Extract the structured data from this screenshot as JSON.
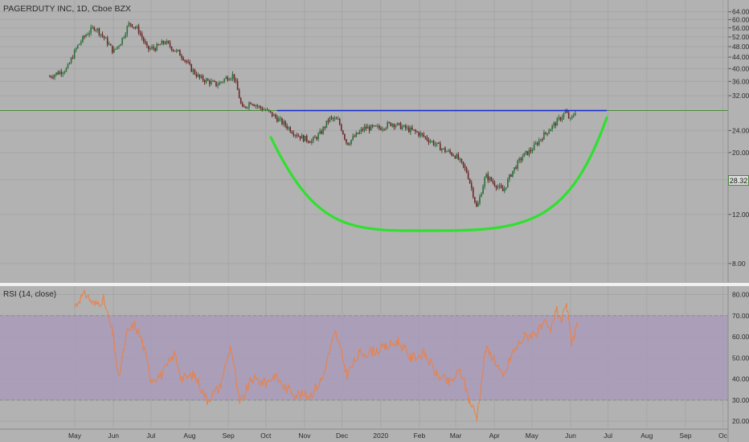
{
  "header": {
    "symbol": "PAGERDUTY INC, 1D, Cboe BZX",
    "current_price": "28.32"
  },
  "rsi": {
    "label": "RSI (14, close)"
  },
  "colors": {
    "background": "#b2b2b2",
    "up_candle": "#2f6f3a",
    "down_candle": "#6a2a2a",
    "resistance_line": "#1a2fd0",
    "cup_curve": "#2fe02f",
    "rsi_line": "#e8824a",
    "rsi_band": "#a99ab8",
    "current_price_line": "#4a8a3a"
  },
  "chart_data": [
    {
      "type": "candlestick",
      "title": "PAGERDUTY INC, 1D, Cboe BZX",
      "x_tick_labels": [
        "May",
        "Jun",
        "Jul",
        "Aug",
        "Sep",
        "Oct",
        "Nov",
        "Dec",
        "2020",
        "Feb",
        "Mar",
        "Apr",
        "May",
        "Jun",
        "Jul",
        "Aug",
        "Sep",
        "Oc"
      ],
      "y_tick_labels": [
        "64.00",
        "60.00",
        "56.00",
        "52.00",
        "48.00",
        "44.00",
        "40.00",
        "36.00",
        "32.00",
        "24.00",
        "20.00",
        "16.00",
        "12.00",
        "8.00"
      ],
      "current_price": 28.32,
      "close_series": [
        {
          "x": "2019-04-11",
          "y": 37.5
        },
        {
          "x": "2019-04-25",
          "y": 40.0
        },
        {
          "x": "2019-05-03",
          "y": 48.0
        },
        {
          "x": "2019-05-10",
          "y": 53.0
        },
        {
          "x": "2019-05-17",
          "y": 56.5
        },
        {
          "x": "2019-05-24",
          "y": 52.0
        },
        {
          "x": "2019-06-01",
          "y": 46.0
        },
        {
          "x": "2019-06-07",
          "y": 50.0
        },
        {
          "x": "2019-06-14",
          "y": 58.5
        },
        {
          "x": "2019-06-21",
          "y": 55.0
        },
        {
          "x": "2019-06-28",
          "y": 47.0
        },
        {
          "x": "2019-07-05",
          "y": 47.5
        },
        {
          "x": "2019-07-12",
          "y": 50.0
        },
        {
          "x": "2019-07-19",
          "y": 47.0
        },
        {
          "x": "2019-07-26",
          "y": 44.5
        },
        {
          "x": "2019-08-02",
          "y": 40.0
        },
        {
          "x": "2019-08-09",
          "y": 37.0
        },
        {
          "x": "2019-08-16",
          "y": 36.0
        },
        {
          "x": "2019-08-23",
          "y": 35.0
        },
        {
          "x": "2019-08-30",
          "y": 37.0
        },
        {
          "x": "2019-09-05",
          "y": 38.0
        },
        {
          "x": "2019-09-12",
          "y": 28.5
        },
        {
          "x": "2019-09-19",
          "y": 30.5
        },
        {
          "x": "2019-09-26",
          "y": 29.0
        },
        {
          "x": "2019-10-03",
          "y": 28.0
        },
        {
          "x": "2019-10-10",
          "y": 26.5
        },
        {
          "x": "2019-10-17",
          "y": 25.0
        },
        {
          "x": "2019-10-24",
          "y": 23.5
        },
        {
          "x": "2019-10-31",
          "y": 22.5
        },
        {
          "x": "2019-11-07",
          "y": 22.0
        },
        {
          "x": "2019-11-14",
          "y": 23.5
        },
        {
          "x": "2019-11-21",
          "y": 26.5
        },
        {
          "x": "2019-11-28",
          "y": 26.0
        },
        {
          "x": "2019-12-05",
          "y": 21.5
        },
        {
          "x": "2019-12-12",
          "y": 23.0
        },
        {
          "x": "2019-12-19",
          "y": 24.5
        },
        {
          "x": "2019-12-31",
          "y": 24.5
        },
        {
          "x": "2020-01-10",
          "y": 25.5
        },
        {
          "x": "2020-01-20",
          "y": 24.5
        },
        {
          "x": "2020-01-31",
          "y": 23.5
        },
        {
          "x": "2020-02-10",
          "y": 22.0
        },
        {
          "x": "2020-02-20",
          "y": 20.5
        },
        {
          "x": "2020-03-01",
          "y": 19.5
        },
        {
          "x": "2020-03-10",
          "y": 17.0
        },
        {
          "x": "2020-03-18",
          "y": 12.5
        },
        {
          "x": "2020-03-25",
          "y": 16.5
        },
        {
          "x": "2020-04-01",
          "y": 15.5
        },
        {
          "x": "2020-04-08",
          "y": 14.5
        },
        {
          "x": "2020-04-15",
          "y": 17.0
        },
        {
          "x": "2020-04-24",
          "y": 19.5
        },
        {
          "x": "2020-05-01",
          "y": 20.5
        },
        {
          "x": "2020-05-10",
          "y": 23.0
        },
        {
          "x": "2020-05-20",
          "y": 25.5
        },
        {
          "x": "2020-05-25",
          "y": 27.0
        },
        {
          "x": "2020-05-28",
          "y": 28.0
        },
        {
          "x": "2020-06-01",
          "y": 26.0
        },
        {
          "x": "2020-06-05",
          "y": 28.3
        }
      ],
      "annotations": [
        {
          "kind": "horizontal_line",
          "level": 28.3,
          "from": "2019-10-10",
          "to": "2020-06-30"
        },
        {
          "kind": "cup_arc",
          "start": {
            "x": "2019-10-05",
            "y": 22.7
          },
          "bottom": {
            "x": "2020-02-20",
            "y": 10.5
          },
          "end": {
            "x": "2020-06-30",
            "y": 26.7
          }
        }
      ]
    },
    {
      "type": "line",
      "title": "RSI (14, close)",
      "y_tick_labels": [
        "80.00",
        "70.00",
        "60.00",
        "50.00",
        "40.00",
        "30.00",
        "20.00"
      ],
      "ylim": [
        17,
        84
      ],
      "band": [
        30,
        70
      ],
      "series": [
        {
          "values": [
            {
              "x": "2019-05-01",
              "y": 74
            },
            {
              "x": "2019-05-05",
              "y": 78
            },
            {
              "x": "2019-05-10",
              "y": 80
            },
            {
              "x": "2019-05-17",
              "y": 75
            },
            {
              "x": "2019-05-24",
              "y": 78
            },
            {
              "x": "2019-06-01",
              "y": 60
            },
            {
              "x": "2019-06-05",
              "y": 40
            },
            {
              "x": "2019-06-12",
              "y": 62
            },
            {
              "x": "2019-06-18",
              "y": 66
            },
            {
              "x": "2019-06-24",
              "y": 58
            },
            {
              "x": "2019-07-01",
              "y": 40
            },
            {
              "x": "2019-07-10",
              "y": 42
            },
            {
              "x": "2019-07-20",
              "y": 52
            },
            {
              "x": "2019-07-26",
              "y": 40
            },
            {
              "x": "2019-08-05",
              "y": 42
            },
            {
              "x": "2019-08-15",
              "y": 30
            },
            {
              "x": "2019-08-25",
              "y": 36
            },
            {
              "x": "2019-09-03",
              "y": 56
            },
            {
              "x": "2019-09-10",
              "y": 28
            },
            {
              "x": "2019-09-20",
              "y": 40
            },
            {
              "x": "2019-10-01",
              "y": 38
            },
            {
              "x": "2019-10-08",
              "y": 42
            },
            {
              "x": "2019-10-16",
              "y": 36
            },
            {
              "x": "2019-10-25",
              "y": 33
            },
            {
              "x": "2019-11-05",
              "y": 32
            },
            {
              "x": "2019-11-15",
              "y": 40
            },
            {
              "x": "2019-11-22",
              "y": 55
            },
            {
              "x": "2019-11-26",
              "y": 62
            },
            {
              "x": "2019-12-05",
              "y": 42
            },
            {
              "x": "2019-12-15",
              "y": 52
            },
            {
              "x": "2019-12-25",
              "y": 53
            },
            {
              "x": "2020-01-05",
              "y": 55
            },
            {
              "x": "2020-01-15",
              "y": 58
            },
            {
              "x": "2020-01-25",
              "y": 50
            },
            {
              "x": "2020-02-05",
              "y": 52
            },
            {
              "x": "2020-02-15",
              "y": 42
            },
            {
              "x": "2020-02-25",
              "y": 38
            },
            {
              "x": "2020-03-05",
              "y": 44
            },
            {
              "x": "2020-03-12",
              "y": 30
            },
            {
              "x": "2020-03-18",
              "y": 22
            },
            {
              "x": "2020-03-25",
              "y": 54
            },
            {
              "x": "2020-04-01",
              "y": 50
            },
            {
              "x": "2020-04-08",
              "y": 40
            },
            {
              "x": "2020-04-15",
              "y": 52
            },
            {
              "x": "2020-04-25",
              "y": 60
            },
            {
              "x": "2020-05-05",
              "y": 62
            },
            {
              "x": "2020-05-12",
              "y": 66
            },
            {
              "x": "2020-05-16",
              "y": 62
            },
            {
              "x": "2020-05-20",
              "y": 73
            },
            {
              "x": "2020-05-25",
              "y": 68
            },
            {
              "x": "2020-05-29",
              "y": 74
            },
            {
              "x": "2020-06-02",
              "y": 56
            },
            {
              "x": "2020-06-06",
              "y": 67
            }
          ]
        }
      ]
    }
  ]
}
